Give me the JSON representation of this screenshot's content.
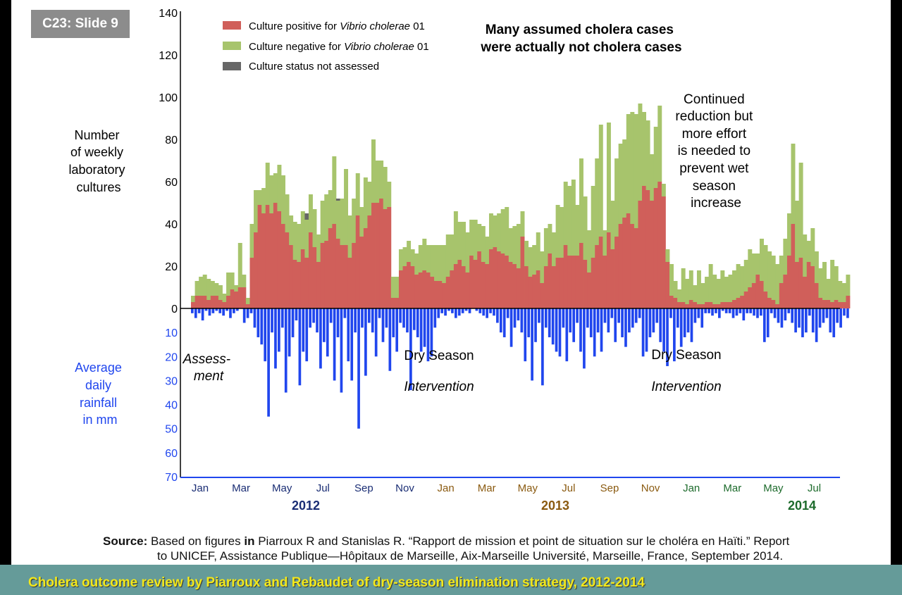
{
  "slide_badge": "C23: Slide 9",
  "banner": "Cholera outcome review by Piarroux and Rebaudet of dry-season elimination strategy, 2012-2014",
  "source": {
    "label": "Source:",
    "text_a": "Based on figures",
    "in_word": "in",
    "text_b": "Piarroux R and Stanislas R. “Rapport de mission et point de situation sur le choléra en Haïti.” Report",
    "line2": "to UNICEF, Assistance Publique—Hôpitaux de Marseille, Aix-Marseille Université, Marseille, France, September 2014."
  },
  "colors": {
    "positive": "#d05f5a",
    "negative": "#a7c46c",
    "not_assessed": "#676767",
    "rainfall": "#2046ee",
    "year2012": "#1a2d74",
    "year2013": "#8a5a10",
    "year2014": "#1d6b2c",
    "rain_axis_text": "#2046ee"
  },
  "chart_data": {
    "type": "bar",
    "title": "Many assumed cholera cases were actually not cholera cases",
    "ylabel": "Number of weekly laboratory cultures",
    "ylabel_lines": [
      "Number",
      "of weekly",
      "laboratory",
      "cultures"
    ],
    "y2label": "Average daily rainfall in mm",
    "y2label_lines": [
      "Average",
      "daily",
      "rainfall",
      "in mm"
    ],
    "ylim": [
      0,
      140
    ],
    "yticks": [
      "0",
      "20",
      "40",
      "60",
      "80",
      "100",
      "120",
      "140"
    ],
    "y2lim": [
      0,
      70
    ],
    "y2ticks": [
      "10",
      "20",
      "30",
      "40",
      "50",
      "60",
      "70"
    ],
    "months": [
      {
        "label": "Jan",
        "year": 2012
      },
      {
        "label": "Mar",
        "year": 2012
      },
      {
        "label": "May",
        "year": 2012
      },
      {
        "label": "Jul",
        "year": 2012
      },
      {
        "label": "Sep",
        "year": 2012
      },
      {
        "label": "Nov",
        "year": 2012
      },
      {
        "label": "Jan",
        "year": 2013
      },
      {
        "label": "Mar",
        "year": 2013
      },
      {
        "label": "May",
        "year": 2013
      },
      {
        "label": "Jul",
        "year": 2013
      },
      {
        "label": "Sep",
        "year": 2013
      },
      {
        "label": "Nov",
        "year": 2013
      },
      {
        "label": "Jan",
        "year": 2014
      },
      {
        "label": "Mar",
        "year": 2014
      },
      {
        "label": "May",
        "year": 2014
      },
      {
        "label": "Jul",
        "year": 2014
      }
    ],
    "years": [
      "2012",
      "2013",
      "2014"
    ],
    "legend": {
      "positive_pre": "Culture positive for ",
      "positive_italic": "Vibrio cholerae",
      "positive_post": " 01",
      "negative_pre": "Culture negative for ",
      "negative_italic": "Vibrio cholerae",
      "negative_post": " 01",
      "not_assessed": "Culture status not assessed"
    },
    "annotations": {
      "assessment": [
        "Assess-",
        "ment"
      ],
      "dry1": "Dry Season",
      "intervention1": "Intervention",
      "dry2": "Dry Season",
      "intervention2": "Intervention",
      "continued": [
        "Continued",
        "reduction but",
        "more effort",
        "is needed to",
        "prevent wet",
        "season",
        "increase"
      ]
    },
    "series": [
      {
        "name": "Culture positive for Vibrio cholerae 01",
        "values": [
          3,
          6,
          6,
          6,
          4,
          6,
          6,
          4,
          3,
          6,
          9,
          8,
          10,
          10,
          2,
          24,
          36,
          49,
          45,
          49,
          45,
          50,
          46,
          40,
          36,
          30,
          23,
          22,
          28,
          24,
          36,
          29,
          22,
          31,
          32,
          38,
          40,
          33,
          30,
          30,
          24,
          31,
          44,
          34,
          38,
          44,
          50,
          50,
          52,
          47,
          48,
          5,
          5,
          18,
          20,
          22,
          20,
          16,
          17,
          18,
          17,
          15,
          13,
          13,
          12,
          15,
          18,
          21,
          23,
          20,
          17,
          25,
          23,
          27,
          22,
          21,
          28,
          29,
          27,
          26,
          25,
          22,
          21,
          19,
          34,
          20,
          15,
          16,
          18,
          12,
          20,
          26,
          20,
          24,
          24,
          30,
          25,
          25,
          25,
          31,
          23,
          17,
          24,
          30,
          34,
          25,
          36,
          28,
          34,
          40,
          43,
          45,
          40,
          38,
          51,
          58,
          56,
          51,
          57,
          60,
          53,
          22,
          6,
          5,
          3,
          3,
          2,
          4,
          3,
          2,
          2,
          3,
          3,
          2,
          2,
          3,
          3,
          3,
          4,
          5,
          6,
          8,
          10,
          12,
          16,
          13,
          8,
          5,
          4,
          2,
          12,
          16,
          25,
          40,
          22,
          24,
          15,
          22,
          20,
          12,
          5,
          4,
          4,
          3,
          4,
          3,
          3,
          6
        ]
      },
      {
        "name": "Culture negative for Vibrio cholerae 01",
        "values": [
          3,
          7,
          9,
          10,
          10,
          7,
          6,
          7,
          4,
          11,
          8,
          3,
          21,
          6,
          3,
          16,
          20,
          7,
          12,
          20,
          18,
          14,
          22,
          23,
          18,
          14,
          18,
          18,
          18,
          18,
          18,
          18,
          13,
          20,
          22,
          18,
          32,
          18,
          22,
          36,
          20,
          21,
          20,
          14,
          24,
          16,
          30,
          20,
          18,
          20,
          12,
          10,
          10,
          10,
          9,
          10,
          8,
          10,
          13,
          15,
          13,
          15,
          17,
          17,
          18,
          20,
          17,
          25,
          18,
          21,
          19,
          17,
          19,
          13,
          17,
          13,
          17,
          15,
          18,
          21,
          23,
          16,
          18,
          21,
          12,
          12,
          14,
          14,
          18,
          15,
          18,
          14,
          16,
          25,
          24,
          30,
          33,
          36,
          24,
          40,
          30,
          20,
          34,
          41,
          53,
          12,
          52,
          23,
          37,
          38,
          37,
          47,
          53,
          54,
          46,
          35,
          33,
          22,
          29,
          36,
          6,
          6,
          15,
          8,
          6,
          16,
          12,
          14,
          8,
          16,
          10,
          12,
          18,
          14,
          12,
          15,
          12,
          13,
          14,
          16,
          14,
          15,
          18,
          14,
          10,
          20,
          22,
          22,
          21,
          19,
          13,
          17,
          20,
          38,
          29,
          45,
          20,
          10,
          18,
          15,
          14,
          18,
          10,
          20,
          16,
          10,
          9,
          10
        ]
      },
      {
        "name": "Culture status not assessed",
        "values": [
          0,
          0,
          0,
          0,
          0,
          0,
          0,
          0,
          0,
          0,
          0,
          0,
          0,
          0,
          0,
          0,
          0,
          0,
          0,
          0,
          0,
          0,
          0,
          0,
          0,
          0,
          0,
          0,
          0,
          3,
          0,
          0,
          0,
          0,
          0,
          0,
          0,
          1,
          0,
          0,
          0,
          0,
          0,
          0,
          0,
          0,
          0,
          0,
          0,
          0,
          0,
          0,
          0,
          0,
          0,
          0,
          0,
          0,
          0,
          0,
          0,
          0,
          0,
          0,
          0,
          0,
          0,
          0,
          0,
          0,
          0,
          0,
          0,
          0,
          0,
          0,
          0,
          0,
          0,
          0,
          0,
          0,
          0,
          0,
          0,
          0,
          0,
          0,
          0,
          0,
          0,
          0,
          0,
          0,
          0,
          0,
          0,
          0,
          0,
          0,
          0,
          0,
          0,
          0,
          0,
          0,
          0,
          0,
          0,
          0,
          0,
          0,
          0,
          0,
          0,
          0,
          0,
          0,
          0,
          0,
          0,
          0,
          0,
          0,
          0,
          0,
          0,
          0,
          0,
          0,
          0,
          0,
          0,
          0,
          0,
          0,
          0,
          0,
          0,
          0,
          0,
          0,
          0,
          0,
          0,
          0,
          0,
          0,
          0,
          0,
          0,
          0,
          0,
          0,
          0,
          0,
          0,
          0,
          0,
          0,
          0,
          0,
          0,
          0,
          0,
          0,
          0,
          0
        ]
      }
    ],
    "rainfall_values": [
      2,
      4,
      2,
      5,
      1,
      3,
      2,
      1,
      2,
      3,
      1,
      4,
      2,
      1,
      0,
      6,
      4,
      2,
      8,
      12,
      15,
      22,
      45,
      10,
      25,
      18,
      8,
      35,
      20,
      12,
      5,
      32,
      18,
      22,
      8,
      6,
      10,
      25,
      14,
      20,
      6,
      30,
      12,
      35,
      4,
      22,
      30,
      10,
      50,
      8,
      28,
      6,
      10,
      20,
      4,
      14,
      8,
      26,
      12,
      18,
      6,
      8,
      10,
      34,
      9,
      12,
      18,
      16,
      22,
      20,
      8,
      4,
      2,
      3,
      1,
      2,
      4,
      3,
      2,
      1,
      2,
      0,
      1,
      2,
      3,
      4,
      2,
      3,
      6,
      10,
      12,
      4,
      16,
      8,
      5,
      10,
      22,
      12,
      30,
      14,
      6,
      32,
      8,
      12,
      15,
      18,
      20,
      8,
      22,
      10,
      14,
      6,
      18,
      25,
      8,
      12,
      20,
      10,
      18,
      6,
      10,
      4,
      14,
      6,
      12,
      16,
      10,
      8,
      6,
      4,
      20,
      18,
      12,
      10,
      6,
      14,
      18,
      24,
      4,
      22,
      8,
      16,
      12,
      10,
      14,
      6,
      4,
      8,
      2,
      2,
      3,
      2,
      4,
      1,
      2,
      2,
      4,
      3,
      2,
      5,
      2,
      2,
      3,
      4,
      3,
      14,
      12,
      2,
      4,
      6,
      8,
      5,
      2,
      6,
      10,
      8,
      12,
      10,
      3,
      10,
      14,
      8,
      6,
      4,
      10,
      12,
      6,
      8,
      3,
      4
    ]
  }
}
